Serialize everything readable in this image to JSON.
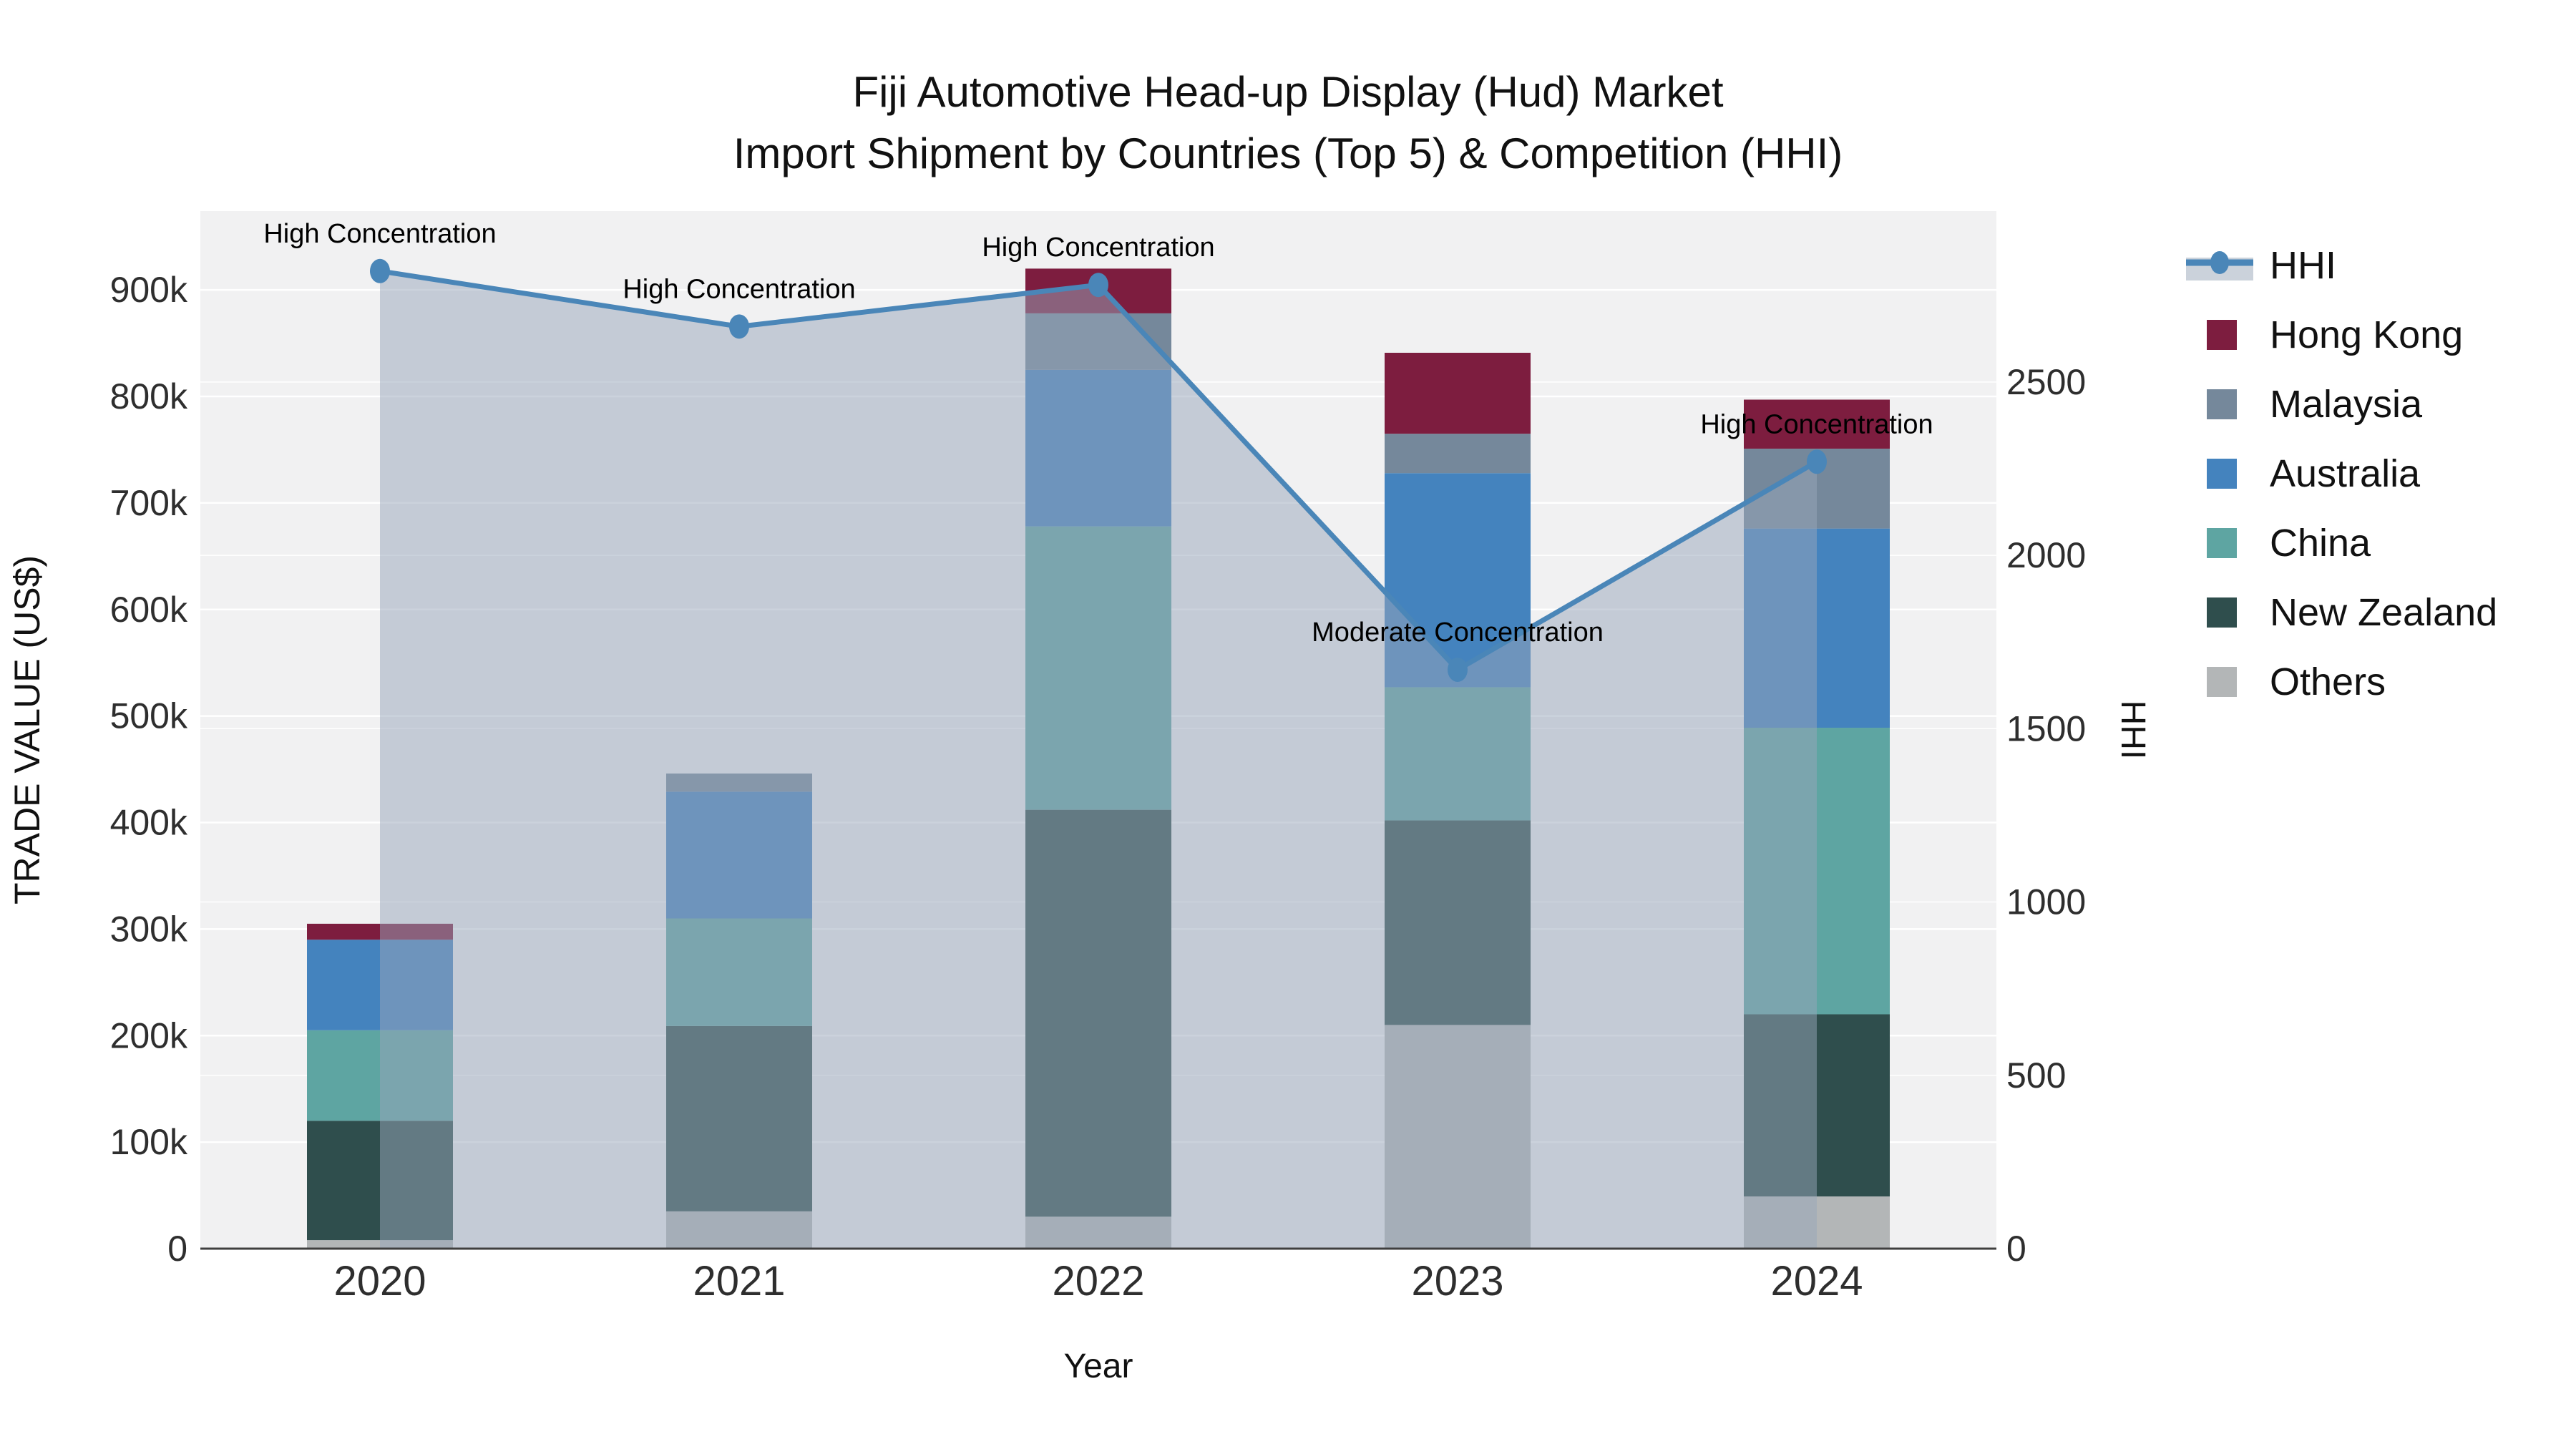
{
  "title": {
    "line1": "Fiji Automotive Head-up Display (Hud) Market",
    "line2": "Import Shipment by Countries (Top 5) & Competition (HHI)"
  },
  "colors": {
    "plot_bg": "#F1F1F2",
    "grid": "#FFFFFF",
    "axis_line": "#3F3F3F",
    "title_text": "#111111",
    "tick_text": "#2E2E2E",
    "annotation_text": "#000000",
    "hhi_line": "#4A86B8",
    "hhi_area": "rgba(151,165,185,0.5)",
    "legend_band": "#CBD2DB"
  },
  "chart_data": {
    "type": "stacked-bar+line",
    "categories": [
      "2020",
      "2021",
      "2022",
      "2023",
      "2024"
    ],
    "xlabel": "Year",
    "ylabel_left": "TRADE VALUE (US$)",
    "ylabel_right": "HHI",
    "bar_series": [
      {
        "name": "Others",
        "color": "#B3B6B7",
        "values": [
          8000,
          35000,
          30000,
          210000,
          49000
        ]
      },
      {
        "name": "New Zealand",
        "color": "#2F4E4D",
        "values": [
          112000,
          174000,
          382000,
          192000,
          171000
        ]
      },
      {
        "name": "China",
        "color": "#5EA5A2",
        "values": [
          85000,
          101000,
          266000,
          125000,
          269000
        ]
      },
      {
        "name": "Australia",
        "color": "#4483BE",
        "values": [
          85000,
          119000,
          147000,
          201000,
          187000
        ]
      },
      {
        "name": "Malaysia",
        "color": "#75889B",
        "values": [
          0,
          17000,
          53000,
          37000,
          75000
        ]
      },
      {
        "name": "Hong Kong",
        "color": "#7D1D3F",
        "values": [
          15000,
          0,
          42000,
          76000,
          46000
        ]
      }
    ],
    "line_series": {
      "name": "HHI",
      "values": [
        2820,
        2660,
        2780,
        1670,
        2270
      ]
    },
    "annotations": [
      "High Concentration",
      "High Concentration",
      "High Concentration",
      "Moderate Concentration",
      "High Concentration"
    ],
    "left_axis": {
      "max": 974000,
      "ticks": [
        {
          "v": 0,
          "label": "0"
        },
        {
          "v": 100000,
          "label": "100k"
        },
        {
          "v": 200000,
          "label": "200k"
        },
        {
          "v": 300000,
          "label": "300k"
        },
        {
          "v": 400000,
          "label": "400k"
        },
        {
          "v": 500000,
          "label": "500k"
        },
        {
          "v": 600000,
          "label": "600k"
        },
        {
          "v": 700000,
          "label": "700k"
        },
        {
          "v": 800000,
          "label": "800k"
        },
        {
          "v": 900000,
          "label": "900k"
        }
      ]
    },
    "right_axis": {
      "max": 2993,
      "ticks": [
        {
          "v": 0,
          "label": "0"
        },
        {
          "v": 500,
          "label": "500"
        },
        {
          "v": 1000,
          "label": "1000"
        },
        {
          "v": 1500,
          "label": "1500"
        },
        {
          "v": 2000,
          "label": "2000"
        },
        {
          "v": 2500,
          "label": "2500"
        }
      ]
    }
  },
  "legend": {
    "items": [
      {
        "label": "HHI",
        "type": "line",
        "color": "#4A86B8"
      },
      {
        "label": "Hong Kong",
        "type": "swatch",
        "color": "#7D1D3F"
      },
      {
        "label": "Malaysia",
        "type": "swatch",
        "color": "#75889B"
      },
      {
        "label": "Australia",
        "type": "swatch",
        "color": "#4483BE"
      },
      {
        "label": "China",
        "type": "swatch",
        "color": "#5EA5A2"
      },
      {
        "label": "New Zealand",
        "type": "swatch",
        "color": "#2F4E4D"
      },
      {
        "label": "Others",
        "type": "swatch",
        "color": "#B3B6B7"
      }
    ]
  }
}
